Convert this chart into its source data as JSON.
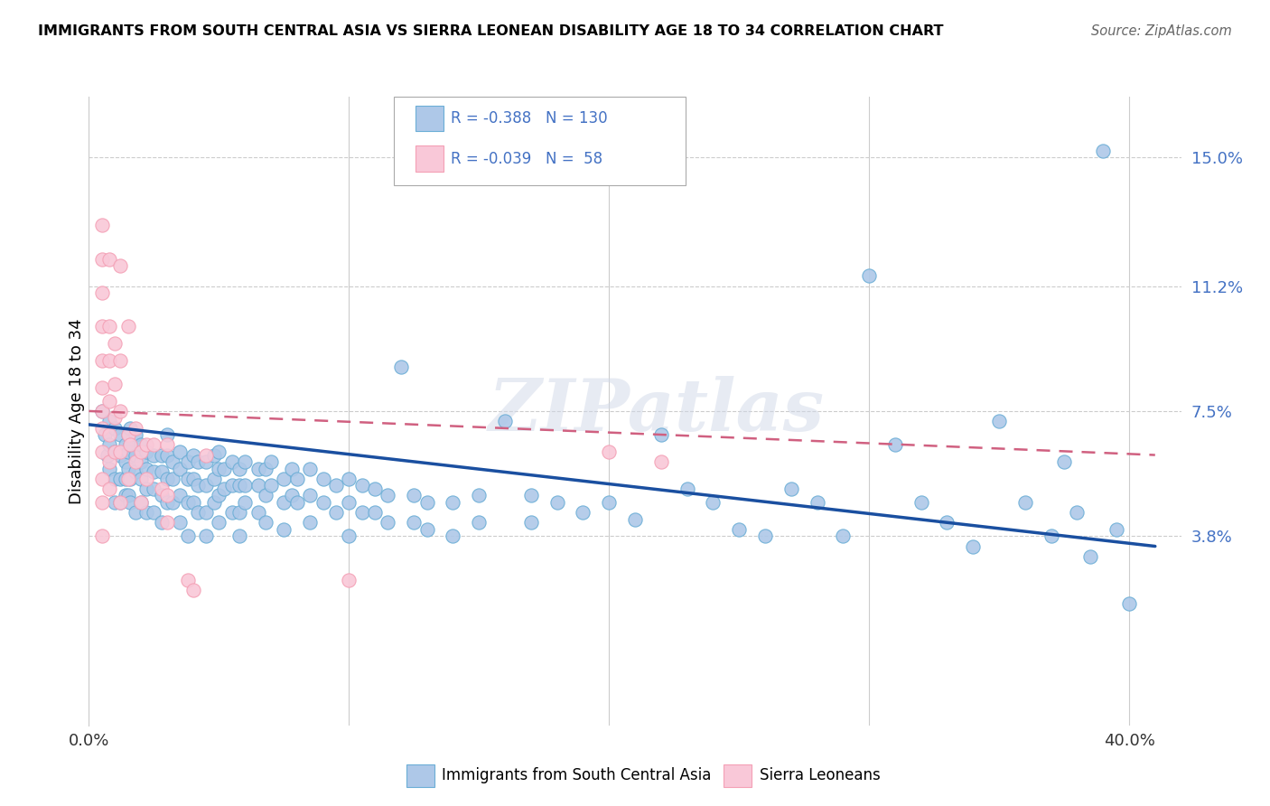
{
  "title": "IMMIGRANTS FROM SOUTH CENTRAL ASIA VS SIERRA LEONEAN DISABILITY AGE 18 TO 34 CORRELATION CHART",
  "source": "Source: ZipAtlas.com",
  "ylabel": "Disability Age 18 to 34",
  "yticks": [
    "3.8%",
    "7.5%",
    "11.2%",
    "15.0%"
  ],
  "ytick_vals": [
    0.038,
    0.075,
    0.112,
    0.15
  ],
  "xlim": [
    0.0,
    0.42
  ],
  "ylim": [
    -0.018,
    0.168
  ],
  "blue_color": "#6baed6",
  "blue_fill": "#aec8e8",
  "pink_color": "#f4a0b5",
  "pink_fill": "#f9c8d8",
  "trendline_blue": "#1a4fa0",
  "trendline_pink": "#d06080",
  "legend_r_blue": "-0.388",
  "legend_n_blue": "130",
  "legend_r_pink": "-0.039",
  "legend_n_pink": "58",
  "label_blue": "Immigrants from South Central Asia",
  "label_pink": "Sierra Leoneans",
  "watermark": "ZIPatlas",
  "blue_scatter": [
    [
      0.005,
      0.075
    ],
    [
      0.006,
      0.068
    ],
    [
      0.007,
      0.062
    ],
    [
      0.008,
      0.072
    ],
    [
      0.008,
      0.065
    ],
    [
      0.008,
      0.058
    ],
    [
      0.01,
      0.07
    ],
    [
      0.01,
      0.063
    ],
    [
      0.01,
      0.055
    ],
    [
      0.01,
      0.048
    ],
    [
      0.012,
      0.068
    ],
    [
      0.012,
      0.062
    ],
    [
      0.012,
      0.055
    ],
    [
      0.012,
      0.048
    ],
    [
      0.014,
      0.065
    ],
    [
      0.014,
      0.06
    ],
    [
      0.014,
      0.055
    ],
    [
      0.014,
      0.05
    ],
    [
      0.015,
      0.068
    ],
    [
      0.015,
      0.063
    ],
    [
      0.015,
      0.058
    ],
    [
      0.015,
      0.05
    ],
    [
      0.016,
      0.07
    ],
    [
      0.016,
      0.065
    ],
    [
      0.016,
      0.055
    ],
    [
      0.016,
      0.048
    ],
    [
      0.018,
      0.068
    ],
    [
      0.018,
      0.062
    ],
    [
      0.018,
      0.057
    ],
    [
      0.018,
      0.045
    ],
    [
      0.02,
      0.065
    ],
    [
      0.02,
      0.06
    ],
    [
      0.02,
      0.055
    ],
    [
      0.02,
      0.048
    ],
    [
      0.022,
      0.063
    ],
    [
      0.022,
      0.058
    ],
    [
      0.022,
      0.052
    ],
    [
      0.022,
      0.045
    ],
    [
      0.025,
      0.062
    ],
    [
      0.025,
      0.057
    ],
    [
      0.025,
      0.052
    ],
    [
      0.025,
      0.045
    ],
    [
      0.028,
      0.062
    ],
    [
      0.028,
      0.057
    ],
    [
      0.028,
      0.05
    ],
    [
      0.028,
      0.042
    ],
    [
      0.03,
      0.068
    ],
    [
      0.03,
      0.062
    ],
    [
      0.03,
      0.055
    ],
    [
      0.03,
      0.048
    ],
    [
      0.032,
      0.06
    ],
    [
      0.032,
      0.055
    ],
    [
      0.032,
      0.048
    ],
    [
      0.035,
      0.063
    ],
    [
      0.035,
      0.058
    ],
    [
      0.035,
      0.05
    ],
    [
      0.035,
      0.042
    ],
    [
      0.038,
      0.06
    ],
    [
      0.038,
      0.055
    ],
    [
      0.038,
      0.048
    ],
    [
      0.038,
      0.038
    ],
    [
      0.04,
      0.062
    ],
    [
      0.04,
      0.055
    ],
    [
      0.04,
      0.048
    ],
    [
      0.042,
      0.06
    ],
    [
      0.042,
      0.053
    ],
    [
      0.042,
      0.045
    ],
    [
      0.045,
      0.06
    ],
    [
      0.045,
      0.053
    ],
    [
      0.045,
      0.045
    ],
    [
      0.045,
      0.038
    ],
    [
      0.048,
      0.062
    ],
    [
      0.048,
      0.055
    ],
    [
      0.048,
      0.048
    ],
    [
      0.05,
      0.063
    ],
    [
      0.05,
      0.058
    ],
    [
      0.05,
      0.05
    ],
    [
      0.05,
      0.042
    ],
    [
      0.052,
      0.058
    ],
    [
      0.052,
      0.052
    ],
    [
      0.055,
      0.06
    ],
    [
      0.055,
      0.053
    ],
    [
      0.055,
      0.045
    ],
    [
      0.058,
      0.058
    ],
    [
      0.058,
      0.053
    ],
    [
      0.058,
      0.045
    ],
    [
      0.058,
      0.038
    ],
    [
      0.06,
      0.06
    ],
    [
      0.06,
      0.053
    ],
    [
      0.06,
      0.048
    ],
    [
      0.065,
      0.058
    ],
    [
      0.065,
      0.053
    ],
    [
      0.065,
      0.045
    ],
    [
      0.068,
      0.058
    ],
    [
      0.068,
      0.05
    ],
    [
      0.068,
      0.042
    ],
    [
      0.07,
      0.06
    ],
    [
      0.07,
      0.053
    ],
    [
      0.075,
      0.055
    ],
    [
      0.075,
      0.048
    ],
    [
      0.075,
      0.04
    ],
    [
      0.078,
      0.058
    ],
    [
      0.078,
      0.05
    ],
    [
      0.08,
      0.055
    ],
    [
      0.08,
      0.048
    ],
    [
      0.085,
      0.058
    ],
    [
      0.085,
      0.05
    ],
    [
      0.085,
      0.042
    ],
    [
      0.09,
      0.055
    ],
    [
      0.09,
      0.048
    ],
    [
      0.095,
      0.053
    ],
    [
      0.095,
      0.045
    ],
    [
      0.1,
      0.055
    ],
    [
      0.1,
      0.048
    ],
    [
      0.1,
      0.038
    ],
    [
      0.105,
      0.053
    ],
    [
      0.105,
      0.045
    ],
    [
      0.11,
      0.052
    ],
    [
      0.11,
      0.045
    ],
    [
      0.115,
      0.05
    ],
    [
      0.115,
      0.042
    ],
    [
      0.12,
      0.088
    ],
    [
      0.125,
      0.05
    ],
    [
      0.125,
      0.042
    ],
    [
      0.13,
      0.048
    ],
    [
      0.13,
      0.04
    ],
    [
      0.14,
      0.048
    ],
    [
      0.14,
      0.038
    ],
    [
      0.15,
      0.05
    ],
    [
      0.15,
      0.042
    ],
    [
      0.16,
      0.072
    ],
    [
      0.17,
      0.05
    ],
    [
      0.17,
      0.042
    ],
    [
      0.18,
      0.048
    ],
    [
      0.19,
      0.045
    ],
    [
      0.2,
      0.048
    ],
    [
      0.21,
      0.043
    ],
    [
      0.22,
      0.068
    ],
    [
      0.23,
      0.052
    ],
    [
      0.24,
      0.048
    ],
    [
      0.25,
      0.04
    ],
    [
      0.26,
      0.038
    ],
    [
      0.27,
      0.052
    ],
    [
      0.28,
      0.048
    ],
    [
      0.29,
      0.038
    ],
    [
      0.3,
      0.115
    ],
    [
      0.31,
      0.065
    ],
    [
      0.32,
      0.048
    ],
    [
      0.33,
      0.042
    ],
    [
      0.34,
      0.035
    ],
    [
      0.35,
      0.072
    ],
    [
      0.36,
      0.048
    ],
    [
      0.37,
      0.038
    ],
    [
      0.375,
      0.06
    ],
    [
      0.38,
      0.045
    ],
    [
      0.385,
      0.032
    ],
    [
      0.39,
      0.152
    ],
    [
      0.395,
      0.04
    ],
    [
      0.4,
      0.018
    ]
  ],
  "pink_scatter": [
    [
      0.005,
      0.13
    ],
    [
      0.005,
      0.12
    ],
    [
      0.005,
      0.11
    ],
    [
      0.005,
      0.1
    ],
    [
      0.005,
      0.09
    ],
    [
      0.005,
      0.082
    ],
    [
      0.005,
      0.075
    ],
    [
      0.005,
      0.07
    ],
    [
      0.005,
      0.063
    ],
    [
      0.005,
      0.055
    ],
    [
      0.005,
      0.048
    ],
    [
      0.005,
      0.038
    ],
    [
      0.008,
      0.12
    ],
    [
      0.008,
      0.1
    ],
    [
      0.008,
      0.09
    ],
    [
      0.008,
      0.078
    ],
    [
      0.008,
      0.068
    ],
    [
      0.008,
      0.06
    ],
    [
      0.008,
      0.052
    ],
    [
      0.01,
      0.095
    ],
    [
      0.01,
      0.083
    ],
    [
      0.01,
      0.073
    ],
    [
      0.01,
      0.063
    ],
    [
      0.012,
      0.118
    ],
    [
      0.012,
      0.09
    ],
    [
      0.012,
      0.075
    ],
    [
      0.012,
      0.063
    ],
    [
      0.012,
      0.048
    ],
    [
      0.015,
      0.1
    ],
    [
      0.015,
      0.068
    ],
    [
      0.015,
      0.055
    ],
    [
      0.016,
      0.065
    ],
    [
      0.018,
      0.07
    ],
    [
      0.018,
      0.06
    ],
    [
      0.02,
      0.063
    ],
    [
      0.02,
      0.048
    ],
    [
      0.022,
      0.065
    ],
    [
      0.022,
      0.055
    ],
    [
      0.025,
      0.065
    ],
    [
      0.028,
      0.052
    ],
    [
      0.03,
      0.065
    ],
    [
      0.03,
      0.05
    ],
    [
      0.03,
      0.042
    ],
    [
      0.038,
      0.025
    ],
    [
      0.04,
      0.022
    ],
    [
      0.045,
      0.062
    ],
    [
      0.1,
      0.025
    ],
    [
      0.2,
      0.063
    ],
    [
      0.22,
      0.06
    ]
  ],
  "blue_trend_x": [
    0.0,
    0.41
  ],
  "blue_trend_y": [
    0.071,
    0.035
  ],
  "pink_trend_x": [
    0.0,
    0.41
  ],
  "pink_trend_y": [
    0.075,
    0.062
  ]
}
